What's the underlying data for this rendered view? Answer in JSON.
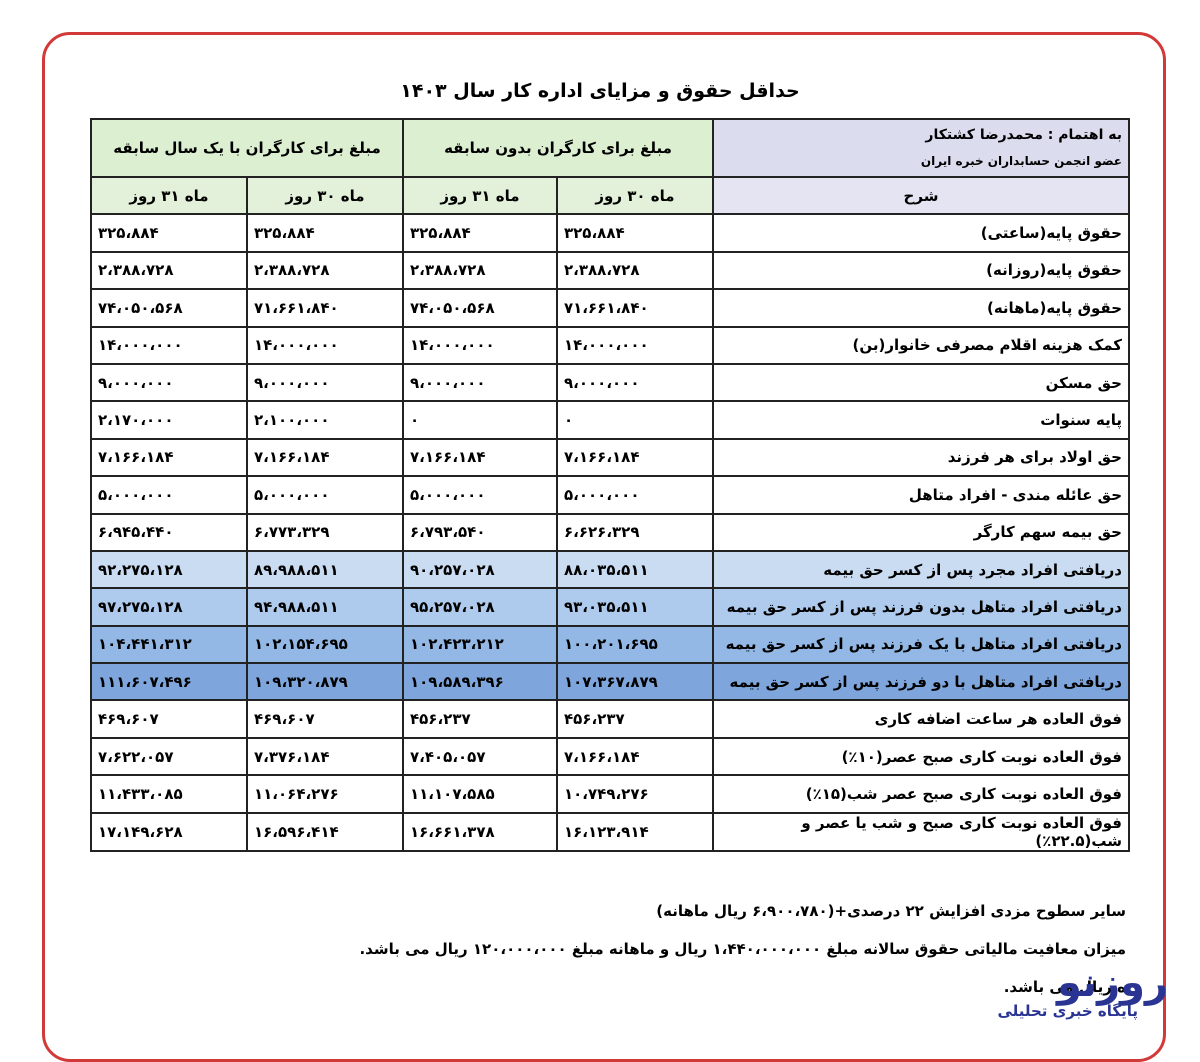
{
  "header": {
    "title": "حداقل حقوق و مزایای اداره کار سال ۱۴۰۳"
  },
  "table": {
    "credit": "به اهتمام : محمدرضا کشتکار",
    "credit_sub": "عضو انجمن حسابداران خبره ایران",
    "groups": [
      "مبلغ برای کارگران بدون سابقه",
      "مبلغ برای کارگران با یک سال سابقه"
    ],
    "columns": [
      "شرح",
      "ماه ۳۰ روز",
      "ماه ۳۱ روز",
      "ماه ۳۰ روز",
      "ماه ۳۱ روز"
    ],
    "rows": [
      [
        "حقوق پایه(ساعتی)",
        "۳۲۵،۸۸۴",
        "۳۲۵،۸۸۴",
        "۳۲۵،۸۸۴",
        "۳۲۵،۸۸۴"
      ],
      [
        "حقوق پایه(روزانه)",
        "۲،۳۸۸،۷۲۸",
        "۲،۳۸۸،۷۲۸",
        "۲،۳۸۸،۷۲۸",
        "۲،۳۸۸،۷۲۸"
      ],
      [
        "حقوق پایه(ماهانه)",
        "۷۱،۶۶۱،۸۴۰",
        "۷۴،۰۵۰،۵۶۸",
        "۷۱،۶۶۱،۸۴۰",
        "۷۴،۰۵۰،۵۶۸"
      ],
      [
        "کمک هزینه اقلام مصرفی خانوار(بن)",
        "۱۴،۰۰۰،۰۰۰",
        "۱۴،۰۰۰،۰۰۰",
        "۱۴،۰۰۰،۰۰۰",
        "۱۴،۰۰۰،۰۰۰"
      ],
      [
        "حق مسکن",
        "۹،۰۰۰،۰۰۰",
        "۹،۰۰۰،۰۰۰",
        "۹،۰۰۰،۰۰۰",
        "۹،۰۰۰،۰۰۰"
      ],
      [
        "پایه سنوات",
        "۰",
        "۰",
        "۲،۱۰۰،۰۰۰",
        "۲،۱۷۰،۰۰۰"
      ],
      [
        "حق اولاد برای هر فرزند",
        "۷،۱۶۶،۱۸۴",
        "۷،۱۶۶،۱۸۴",
        "۷،۱۶۶،۱۸۴",
        "۷،۱۶۶،۱۸۴"
      ],
      [
        "حق عائله مندی - افراد متاهل",
        "۵،۰۰۰،۰۰۰",
        "۵،۰۰۰،۰۰۰",
        "۵،۰۰۰،۰۰۰",
        "۵،۰۰۰،۰۰۰"
      ],
      [
        "حق بیمه سهم کارگر",
        "۶،۶۲۶،۳۲۹",
        "۶،۷۹۳،۵۴۰",
        "۶،۷۷۳،۳۲۹",
        "۶،۹۴۵،۴۴۰"
      ],
      [
        "دریافتی افراد مجرد پس از کسر حق بیمه",
        "۸۸،۰۳۵،۵۱۱",
        "۹۰،۲۵۷،۰۲۸",
        "۸۹،۹۸۸،۵۱۱",
        "۹۲،۲۷۵،۱۲۸"
      ],
      [
        "دریافتی افراد متاهل بدون فرزند پس از کسر حق بیمه",
        "۹۳،۰۳۵،۵۱۱",
        "۹۵،۲۵۷،۰۲۸",
        "۹۴،۹۸۸،۵۱۱",
        "۹۷،۲۷۵،۱۲۸"
      ],
      [
        "دریافتی افراد متاهل با یک فرزند پس از کسر حق بیمه",
        "۱۰۰،۲۰۱،۶۹۵",
        "۱۰۲،۴۲۳،۲۱۲",
        "۱۰۲،۱۵۴،۶۹۵",
        "۱۰۴،۴۴۱،۳۱۲"
      ],
      [
        "دریافتی افراد متاهل با دو فرزند پس از کسر حق بیمه",
        "۱۰۷،۳۶۷،۸۷۹",
        "۱۰۹،۵۸۹،۳۹۶",
        "۱۰۹،۳۲۰،۸۷۹",
        "۱۱۱،۶۰۷،۴۹۶"
      ],
      [
        "فوق العاده هر ساعت اضافه کاری",
        "۴۵۶،۲۳۷",
        "۴۵۶،۲۳۷",
        "۴۶۹،۶۰۷",
        "۴۶۹،۶۰۷"
      ],
      [
        "فوق العاده نوبت کاری صبح عصر(۱۰٪)",
        "۷،۱۶۶،۱۸۴",
        "۷،۴۰۵،۰۵۷",
        "۷،۳۷۶،۱۸۴",
        "۷،۶۲۲،۰۵۷"
      ],
      [
        "فوق العاده نوبت کاری صبح عصر شب(۱۵٪)",
        "۱۰،۷۴۹،۲۷۶",
        "۱۱،۱۰۷،۵۸۵",
        "۱۱،۰۶۴،۲۷۶",
        "۱۱،۴۳۳،۰۸۵"
      ],
      [
        "فوق العاده نوبت کاری صبح و شب یا عصر و شب(۲۲.۵٪)",
        "۱۶،۱۲۳،۹۱۴",
        "۱۶،۶۶۱،۳۷۸",
        "۱۶،۵۹۶،۴۱۴",
        "۱۷،۱۴۹،۶۲۸"
      ]
    ]
  },
  "notes": [
    "سایر سطوح مزدی افزایش ۲۲ درصدی+(۶،۹۰۰،۷۸۰ ریال ماهانه)",
    "میزان معافیت مالیاتی حقوق سالانه مبلغ ۱،۴۴۰،۰۰۰،۰۰۰ ریال و ماهانه مبلغ ۱۲۰،۰۰۰،۰۰۰ ریال می باشد.",
    "ه ریال می باشد."
  ],
  "logo": {
    "name": "روزنو",
    "tagline": "پایگاه خبری تحلیلی"
  }
}
